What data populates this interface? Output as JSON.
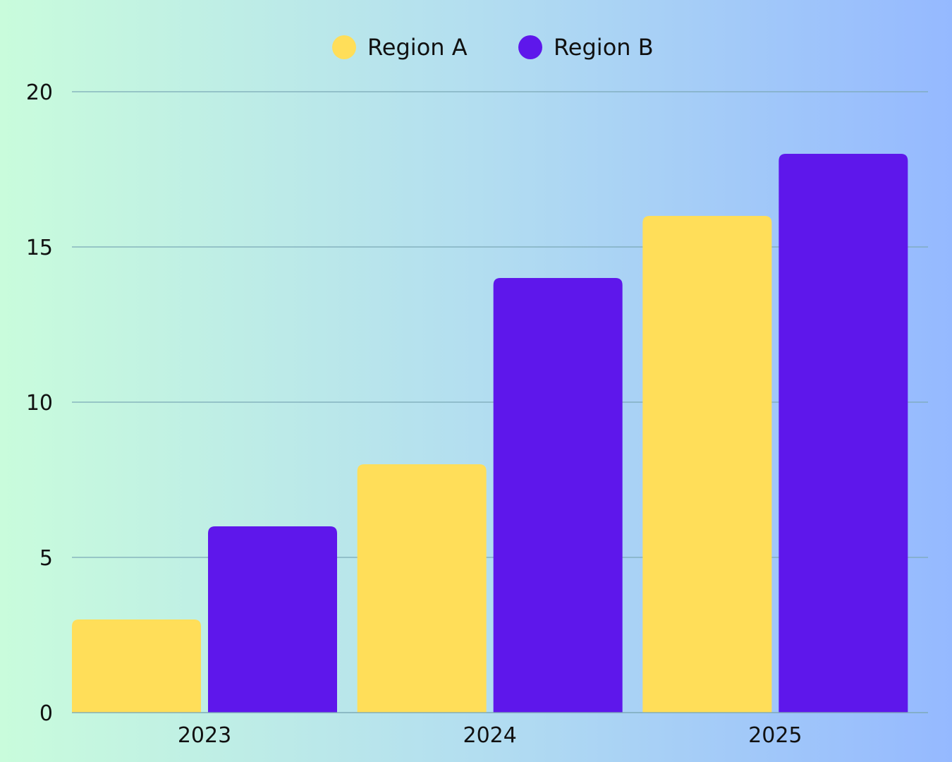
{
  "chart_data": {
    "type": "bar",
    "categories": [
      "2023",
      "2024",
      "2025"
    ],
    "series": [
      {
        "name": "Region A",
        "values": [
          3,
          8,
          16
        ],
        "color": "#ffde59"
      },
      {
        "name": "Region B",
        "values": [
          6,
          14,
          18
        ],
        "color": "#5e17eb"
      }
    ],
    "ylim": [
      0,
      20
    ],
    "yticks": [
      0,
      5,
      10,
      15,
      20
    ],
    "grid": true,
    "legend_position": "top-center",
    "gridline_color": "#7ba9b6",
    "background_gradient": [
      "#c9fcdc",
      "#b3def0",
      "#95b9ff"
    ]
  }
}
